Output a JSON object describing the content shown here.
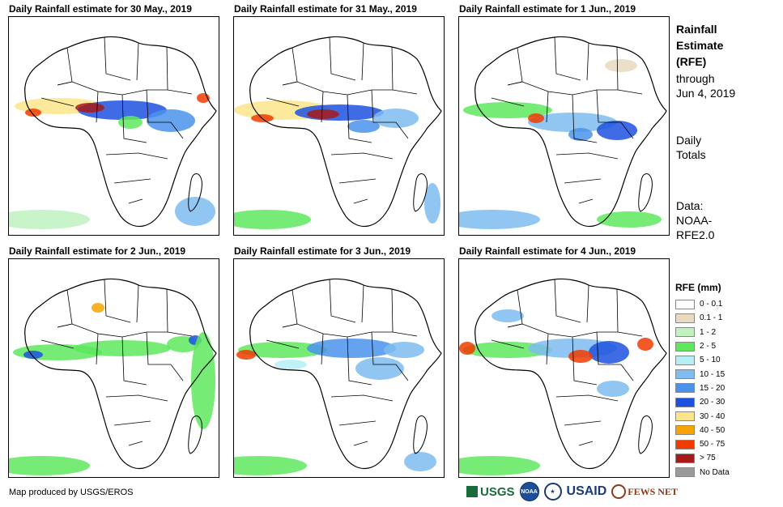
{
  "panels": [
    {
      "title": "Daily Rainfall estimate for 30 May., 2019"
    },
    {
      "title": "Daily Rainfall estimate for 31 May., 2019"
    },
    {
      "title": "Daily Rainfall estimate for 1 Jun., 2019"
    },
    {
      "title": "Daily Rainfall estimate for 2 Jun., 2019"
    },
    {
      "title": "Daily Rainfall estimate for 3 Jun., 2019"
    },
    {
      "title": "Daily Rainfall estimate for 4 Jun., 2019"
    }
  ],
  "side": {
    "title": [
      "Rainfall",
      "Estimate",
      "(RFE)"
    ],
    "through": [
      "through",
      "Jun 4, 2019"
    ],
    "totals": [
      "Daily",
      "Totals"
    ],
    "source": [
      "Data:",
      "NOAA-",
      "RFE2.0"
    ]
  },
  "legend": {
    "title": "RFE (mm)",
    "items": [
      {
        "label": "0 - 0.1",
        "color": "#ffffff"
      },
      {
        "label": "0.1 - 1",
        "color": "#e8d9bf"
      },
      {
        "label": "1 - 2",
        "color": "#bff2bf"
      },
      {
        "label": "2 - 5",
        "color": "#5ee85e"
      },
      {
        "label": "5 - 10",
        "color": "#b5eef5"
      },
      {
        "label": "10 - 15",
        "color": "#7fbcf0"
      },
      {
        "label": "15 - 20",
        "color": "#4a93ec"
      },
      {
        "label": "20 - 30",
        "color": "#1d52e0"
      },
      {
        "label": "30 - 40",
        "color": "#fbe58a"
      },
      {
        "label": "40 - 50",
        "color": "#f8a400"
      },
      {
        "label": "50 - 75",
        "color": "#f03c00"
      },
      {
        "label": "> 75",
        "color": "#a81a1a"
      },
      {
        "label": "No Data",
        "color": "#9a9a9a"
      }
    ]
  },
  "credit": "Map produced by USGS/EROS",
  "logos": {
    "usgs": "USGS",
    "noaa": "NOAA",
    "usaid": "USAID",
    "fews": "FEWS NET"
  }
}
